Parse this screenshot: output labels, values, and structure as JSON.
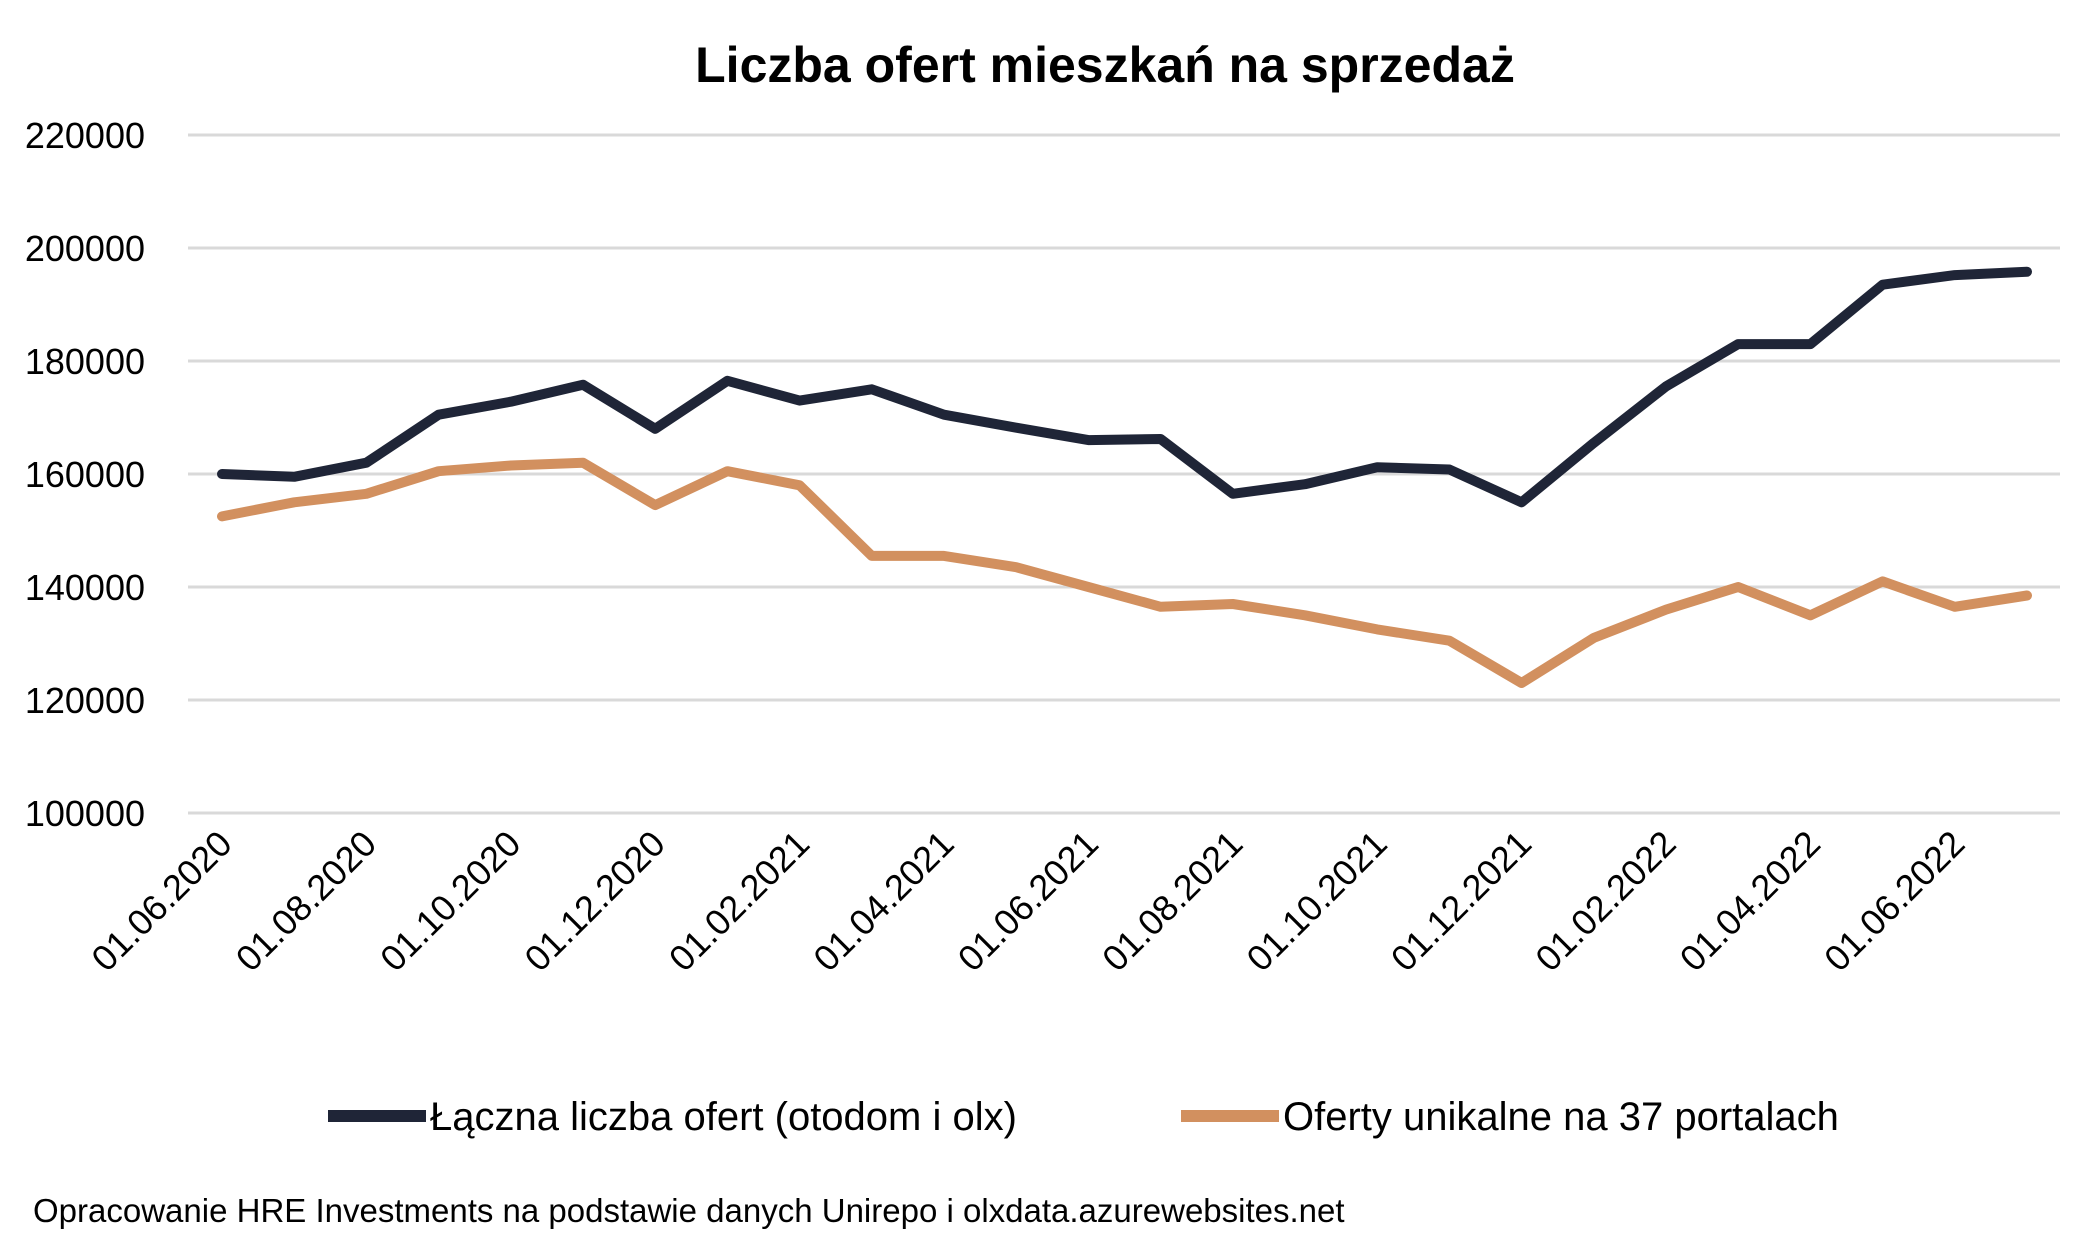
{
  "chart_data": {
    "type": "line",
    "title": "Liczba ofert mieszkań na sprzedaż",
    "xlabel": "",
    "ylabel": "",
    "ylim": [
      100000,
      220000
    ],
    "yticks": [
      "220000",
      "200000",
      "180000",
      "160000",
      "140000",
      "120000",
      "100000"
    ],
    "ytick_values": [
      220000,
      200000,
      180000,
      160000,
      140000,
      120000,
      100000
    ],
    "grid": true,
    "legend_position": "bottom",
    "x": [
      "01.06.2020",
      "01.07.2020",
      "01.08.2020",
      "01.09.2020",
      "01.10.2020",
      "01.11.2020",
      "01.12.2020",
      "01.01.2021",
      "01.02.2021",
      "01.03.2021",
      "01.04.2021",
      "01.05.2021",
      "01.06.2021",
      "01.07.2021",
      "01.08.2021",
      "01.09.2021",
      "01.10.2021",
      "01.11.2021",
      "01.12.2021",
      "01.01.2022",
      "01.02.2022",
      "01.03.2022",
      "01.04.2022",
      "01.05.2022",
      "01.06.2022",
      "01.07.2022"
    ],
    "xtick_labels": [
      "01.06.2020",
      "01.08.2020",
      "01.10.2020",
      "01.12.2020",
      "01.02.2021",
      "01.04.2021",
      "01.06.2021",
      "01.08.2021",
      "01.10.2021",
      "01.12.2021",
      "01.02.2022",
      "01.04.2022",
      "01.06.2022"
    ],
    "series": [
      {
        "name": "Łączna liczba ofert (otodom i olx)",
        "color": "#1f2537",
        "values": [
          160000,
          159500,
          162000,
          170500,
          172800,
          175800,
          168000,
          176500,
          173000,
          175000,
          170500,
          168200,
          166000,
          166200,
          156500,
          158200,
          161200,
          160800,
          155000,
          165500,
          175500,
          183000,
          183000,
          193500,
          195200,
          195800
        ]
      },
      {
        "name": "Oferty unikalne na 37 portalach",
        "color": "#d2905f",
        "values": [
          152500,
          155000,
          156500,
          160500,
          161500,
          162000,
          154500,
          160500,
          158000,
          145500,
          145500,
          143500,
          140000,
          136500,
          137000,
          135000,
          132500,
          130500,
          123000,
          131000,
          136000,
          140000,
          135000,
          141000,
          136500,
          138500
        ]
      }
    ]
  },
  "source_note": "Opracowanie HRE Investments na podstawie danych Unirepo i olxdata.azurewebsites.net"
}
